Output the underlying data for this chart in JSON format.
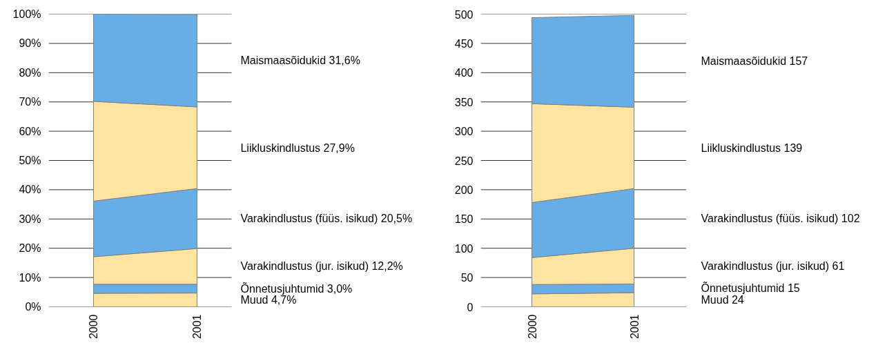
{
  "chart_data": [
    {
      "type": "area",
      "stacked": true,
      "categories": [
        "2000",
        "2001"
      ],
      "ylim": [
        0,
        100
      ],
      "yticks": [
        {
          "value": 0,
          "label": "0%"
        },
        {
          "value": 10,
          "label": "10%"
        },
        {
          "value": 20,
          "label": "20%"
        },
        {
          "value": 30,
          "label": "30%"
        },
        {
          "value": 40,
          "label": "40%"
        },
        {
          "value": 50,
          "label": "50%"
        },
        {
          "value": 60,
          "label": "60%"
        },
        {
          "value": 70,
          "label": "70%"
        },
        {
          "value": 80,
          "label": "80%"
        },
        {
          "value": 90,
          "label": "90%"
        },
        {
          "value": 100,
          "label": "100%"
        }
      ],
      "grid": "y",
      "series": [
        {
          "name": "Muud  4,7%",
          "color": "#fee3a1",
          "values": [
            4.6,
            4.7
          ]
        },
        {
          "name": "Õnnetusjuhtumid 3,0%",
          "color": "#67aee6",
          "values": [
            3.1,
            3.0
          ]
        },
        {
          "name": "Varakindlustus (jur. isikud) 12,2%",
          "color": "#fee3a1",
          "values": [
            9.4,
            12.2
          ]
        },
        {
          "name": "Varakindlustus (füüs. isikud) 20,5%",
          "color": "#67aee6",
          "values": [
            19.0,
            20.5
          ]
        },
        {
          "name": "Liikluskindlustus 27,9%",
          "color": "#fee3a1",
          "values": [
            34.1,
            27.9
          ]
        },
        {
          "name": "Maismaasõidukid 31,6%",
          "color": "#67aee6",
          "values": [
            29.8,
            31.6
          ]
        }
      ]
    },
    {
      "type": "area",
      "stacked": true,
      "categories": [
        "2000",
        "2001"
      ],
      "ylim": [
        0,
        500
      ],
      "yticks": [
        0,
        50,
        100,
        150,
        200,
        250,
        300,
        350,
        400,
        450,
        500
      ],
      "grid": "y",
      "series": [
        {
          "name": "Muud  24",
          "color": "#fee3a1",
          "values": [
            22,
            24
          ]
        },
        {
          "name": "Õnnetusjuhtumid 15",
          "color": "#67aee6",
          "values": [
            16,
            15
          ]
        },
        {
          "name": "Varakindlustus (jur. isikud) 61",
          "color": "#fee3a1",
          "values": [
            46,
            61
          ]
        },
        {
          "name": "Varakindlustus (füüs. isikud) 102",
          "color": "#67aee6",
          "values": [
            94,
            102
          ]
        },
        {
          "name": "Liikluskindlustus 139",
          "color": "#fee3a1",
          "values": [
            169,
            139
          ]
        },
        {
          "name": "Maismaasõidukid 157",
          "color": "#67aee6",
          "values": [
            147,
            157
          ]
        }
      ]
    }
  ]
}
